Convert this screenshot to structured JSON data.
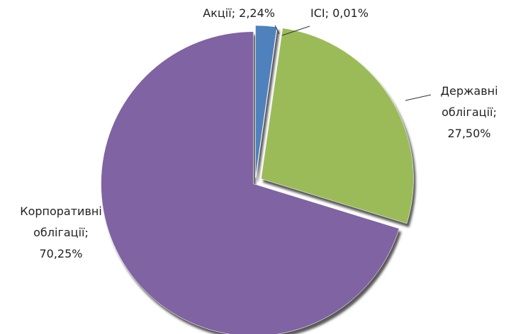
{
  "chart_data": {
    "type": "pie",
    "values": [
      2.24,
      0.01,
      27.5,
      70.25
    ],
    "value_labels": [
      "Акції; 2,24%",
      "ІСІ; 0,01%",
      "Державні облігації; 27,50%",
      "Корпоративні облігації; 70,25%"
    ],
    "colors": [
      "#4f81bd",
      "#c0504d",
      "#9bbb59",
      "#8064a2"
    ],
    "start_angle": 0,
    "direction": "clockwise"
  }
}
